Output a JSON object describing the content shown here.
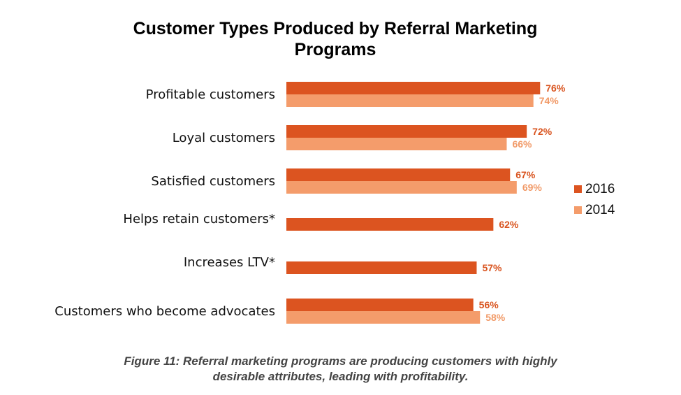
{
  "title": {
    "line1": "Customer Types Produced by Referral Marketing",
    "line2": "Programs"
  },
  "caption": {
    "line1": "Figure 11: Referral marketing programs are producing customers with highly",
    "line2": "desirable attributes, leading with profitability."
  },
  "colors": {
    "series_2016": "#dc5420",
    "series_2014": "#f49c6b",
    "label_2016": "#d9541f",
    "label_2014": "#f19a68"
  },
  "chart_data": {
    "type": "bar",
    "orientation": "horizontal",
    "title": "Customer Types Produced by Referral Marketing Programs",
    "categories": [
      "Profitable customers",
      "Loyal customers",
      "Satisfied customers",
      "Helps retain customers*",
      "Increases LTV*",
      "Customers who become advocates"
    ],
    "series": [
      {
        "name": "2016",
        "values": [
          76,
          72,
          67,
          62,
          57,
          56
        ],
        "labels": [
          "76%",
          "72%",
          "67%",
          "62%",
          "57%",
          "56%"
        ]
      },
      {
        "name": "2014",
        "values": [
          74,
          66,
          69,
          null,
          null,
          58
        ],
        "labels": [
          "74%",
          "66%",
          "69%",
          "",
          "",
          "58%"
        ]
      }
    ],
    "xlim": [
      0,
      100
    ],
    "unit": "%",
    "grid": false,
    "legend": "right"
  }
}
